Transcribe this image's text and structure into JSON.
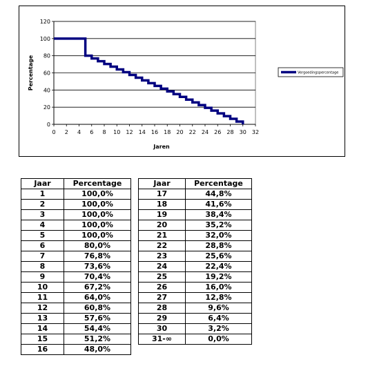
{
  "chart_data": {
    "type": "line",
    "step": true,
    "title": "",
    "xlabel": "Jaren",
    "ylabel": "Percentage",
    "xlim": [
      0,
      32
    ],
    "ylim": [
      0,
      120
    ],
    "x_ticks": [
      "0",
      "2",
      "4",
      "6",
      "8",
      "10",
      "12",
      "14",
      "16",
      "18",
      "20",
      "22",
      "24",
      "26",
      "28",
      "30",
      "32"
    ],
    "y_ticks": [
      "0",
      "20",
      "40",
      "60",
      "80",
      "100",
      "120"
    ],
    "grid": "horizontal",
    "legend_position": "right",
    "line_color": "#000080",
    "series": [
      {
        "name": "Vergoedingspercentage",
        "x": [
          0,
          1,
          2,
          3,
          4,
          5,
          6,
          7,
          8,
          9,
          10,
          11,
          12,
          13,
          14,
          15,
          16,
          17,
          18,
          19,
          20,
          21,
          22,
          23,
          24,
          25,
          26,
          27,
          28,
          29,
          30
        ],
        "y": [
          100,
          100,
          100,
          100,
          100,
          80,
          76.8,
          73.6,
          70.4,
          67.2,
          64,
          60.8,
          57.6,
          54.4,
          51.2,
          48,
          44.8,
          41.6,
          38.4,
          35.2,
          32,
          28.8,
          25.6,
          22.4,
          19.2,
          16,
          12.8,
          9.6,
          6.4,
          3.2,
          0
        ]
      }
    ]
  },
  "table": {
    "headers": [
      "Jaar",
      "Percentage"
    ],
    "left_rows": [
      [
        "1",
        "100,0%"
      ],
      [
        "2",
        "100,0%"
      ],
      [
        "3",
        "100,0%"
      ],
      [
        "4",
        "100,0%"
      ],
      [
        "5",
        "100,0%"
      ],
      [
        "6",
        "80,0%"
      ],
      [
        "7",
        "76,8%"
      ],
      [
        "8",
        "73,6%"
      ],
      [
        "9",
        "70,4%"
      ],
      [
        "10",
        "67,2%"
      ],
      [
        "11",
        "64,0%"
      ],
      [
        "12",
        "60,8%"
      ],
      [
        "13",
        "57,6%"
      ],
      [
        "14",
        "54,4%"
      ],
      [
        "15",
        "51,2%"
      ],
      [
        "16",
        "48,0%"
      ]
    ],
    "right_rows": [
      [
        "17",
        "44,8%"
      ],
      [
        "18",
        "41,6%"
      ],
      [
        "19",
        "38,4%"
      ],
      [
        "20",
        "35,2%"
      ],
      [
        "21",
        "32,0%"
      ],
      [
        "22",
        "28,8%"
      ],
      [
        "23",
        "25,6%"
      ],
      [
        "24",
        "22,4%"
      ],
      [
        "25",
        "19,2%"
      ],
      [
        "26",
        "16,0%"
      ],
      [
        "27",
        "12,8%"
      ],
      [
        "28",
        "9,6%"
      ],
      [
        "29",
        "6,4%"
      ],
      [
        "30",
        "3,2%"
      ],
      [
        "31-∞",
        "0,0%"
      ]
    ]
  }
}
